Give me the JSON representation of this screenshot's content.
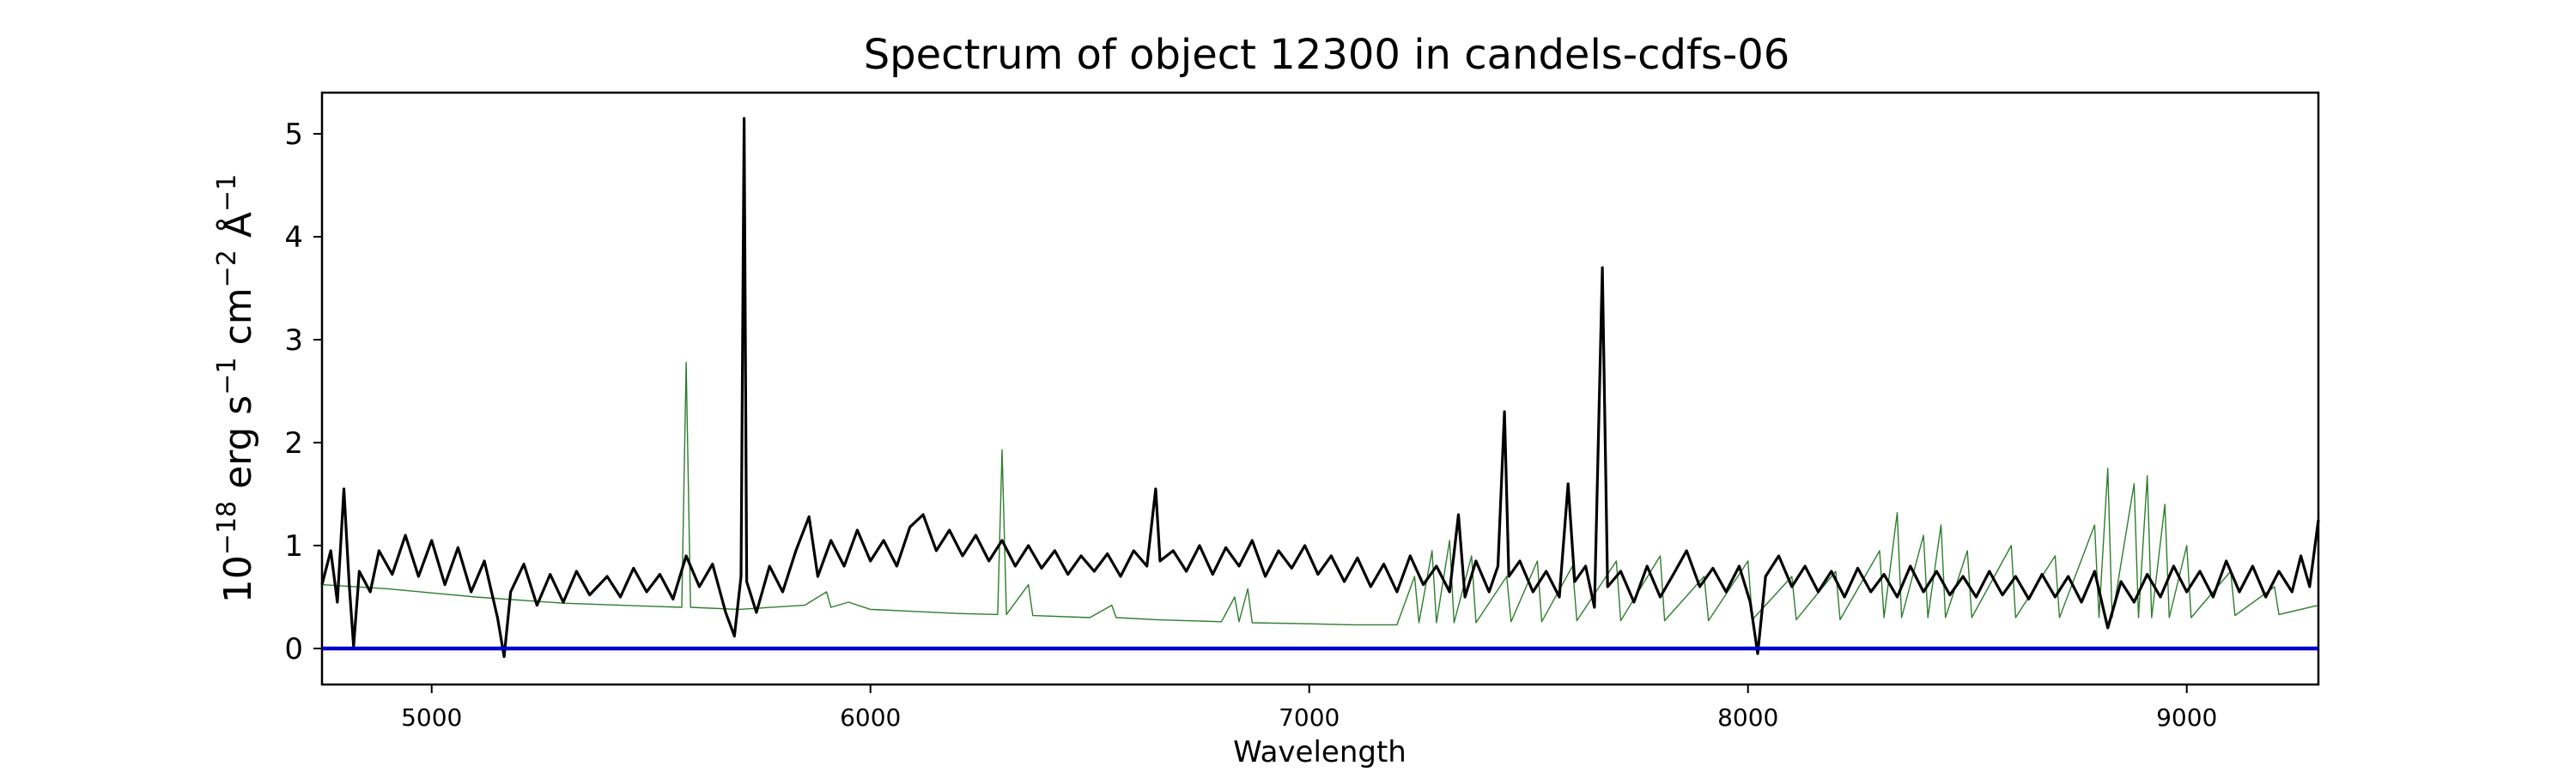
{
  "chart_data": {
    "type": "line",
    "title": "Spectrum of object 12300 in candels-cdfs-06",
    "xlabel": "Wavelength",
    "ylabel": {
      "base": "10",
      "exp_base": "−18",
      "text1": " erg s",
      "exp_s": "−1",
      "text2": " cm",
      "exp_cm": "−2",
      "text3": " Å",
      "exp_a": "−1"
    },
    "xlim": [
      4750,
      9300
    ],
    "ylim": [
      -0.35,
      5.4
    ],
    "xticks": [
      5000,
      6000,
      7000,
      8000,
      9000
    ],
    "xtick_labels": [
      "5000",
      "6000",
      "7000",
      "8000",
      "9000"
    ],
    "yticks": [
      0,
      1,
      2,
      3,
      4,
      5
    ],
    "ytick_labels": [
      "0",
      "1",
      "2",
      "3",
      "4",
      "5"
    ],
    "grid": false,
    "series": [
      {
        "role": "flux",
        "color": "#000000",
        "points": [
          [
            4750,
            0.62
          ],
          [
            4770,
            0.95
          ],
          [
            4785,
            0.45
          ],
          [
            4800,
            1.55
          ],
          [
            4812,
            0.62
          ],
          [
            4822,
            0.02
          ],
          [
            4835,
            0.75
          ],
          [
            4860,
            0.55
          ],
          [
            4880,
            0.95
          ],
          [
            4910,
            0.72
          ],
          [
            4940,
            1.1
          ],
          [
            4970,
            0.7
          ],
          [
            5000,
            1.05
          ],
          [
            5030,
            0.62
          ],
          [
            5060,
            0.98
          ],
          [
            5090,
            0.55
          ],
          [
            5120,
            0.85
          ],
          [
            5150,
            0.3
          ],
          [
            5165,
            -0.08
          ],
          [
            5180,
            0.55
          ],
          [
            5210,
            0.82
          ],
          [
            5240,
            0.42
          ],
          [
            5270,
            0.72
          ],
          [
            5300,
            0.45
          ],
          [
            5330,
            0.75
          ],
          [
            5360,
            0.52
          ],
          [
            5400,
            0.7
          ],
          [
            5430,
            0.5
          ],
          [
            5460,
            0.78
          ],
          [
            5490,
            0.55
          ],
          [
            5520,
            0.72
          ],
          [
            5550,
            0.48
          ],
          [
            5580,
            0.9
          ],
          [
            5610,
            0.6
          ],
          [
            5640,
            0.82
          ],
          [
            5670,
            0.35
          ],
          [
            5690,
            0.12
          ],
          [
            5705,
            0.7
          ],
          [
            5712,
            5.15
          ],
          [
            5718,
            0.65
          ],
          [
            5740,
            0.35
          ],
          [
            5770,
            0.8
          ],
          [
            5800,
            0.55
          ],
          [
            5830,
            0.95
          ],
          [
            5860,
            1.28
          ],
          [
            5880,
            0.7
          ],
          [
            5910,
            1.05
          ],
          [
            5940,
            0.8
          ],
          [
            5970,
            1.15
          ],
          [
            6000,
            0.85
          ],
          [
            6030,
            1.05
          ],
          [
            6060,
            0.8
          ],
          [
            6090,
            1.18
          ],
          [
            6120,
            1.3
          ],
          [
            6150,
            0.95
          ],
          [
            6180,
            1.15
          ],
          [
            6210,
            0.9
          ],
          [
            6240,
            1.1
          ],
          [
            6270,
            0.85
          ],
          [
            6300,
            1.05
          ],
          [
            6330,
            0.8
          ],
          [
            6360,
            1.0
          ],
          [
            6390,
            0.78
          ],
          [
            6420,
            0.95
          ],
          [
            6450,
            0.72
          ],
          [
            6480,
            0.9
          ],
          [
            6510,
            0.75
          ],
          [
            6540,
            0.92
          ],
          [
            6570,
            0.7
          ],
          [
            6600,
            0.95
          ],
          [
            6630,
            0.8
          ],
          [
            6650,
            1.55
          ],
          [
            6660,
            0.85
          ],
          [
            6690,
            0.95
          ],
          [
            6720,
            0.75
          ],
          [
            6750,
            1.0
          ],
          [
            6780,
            0.72
          ],
          [
            6810,
            0.98
          ],
          [
            6840,
            0.8
          ],
          [
            6870,
            1.05
          ],
          [
            6900,
            0.7
          ],
          [
            6930,
            0.95
          ],
          [
            6960,
            0.78
          ],
          [
            6990,
            1.0
          ],
          [
            7020,
            0.72
          ],
          [
            7050,
            0.9
          ],
          [
            7080,
            0.65
          ],
          [
            7110,
            0.88
          ],
          [
            7140,
            0.6
          ],
          [
            7170,
            0.82
          ],
          [
            7200,
            0.55
          ],
          [
            7230,
            0.9
          ],
          [
            7260,
            0.62
          ],
          [
            7290,
            0.8
          ],
          [
            7320,
            0.55
          ],
          [
            7340,
            1.3
          ],
          [
            7355,
            0.5
          ],
          [
            7380,
            0.85
          ],
          [
            7410,
            0.55
          ],
          [
            7430,
            0.8
          ],
          [
            7445,
            2.3
          ],
          [
            7455,
            0.7
          ],
          [
            7480,
            0.85
          ],
          [
            7510,
            0.55
          ],
          [
            7540,
            0.75
          ],
          [
            7570,
            0.5
          ],
          [
            7590,
            1.6
          ],
          [
            7605,
            0.65
          ],
          [
            7630,
            0.8
          ],
          [
            7650,
            0.4
          ],
          [
            7668,
            3.7
          ],
          [
            7680,
            0.6
          ],
          [
            7710,
            0.75
          ],
          [
            7740,
            0.45
          ],
          [
            7770,
            0.8
          ],
          [
            7800,
            0.5
          ],
          [
            7830,
            0.72
          ],
          [
            7860,
            0.95
          ],
          [
            7890,
            0.6
          ],
          [
            7920,
            0.78
          ],
          [
            7950,
            0.55
          ],
          [
            7980,
            0.8
          ],
          [
            8005,
            0.45
          ],
          [
            8022,
            -0.05
          ],
          [
            8040,
            0.7
          ],
          [
            8070,
            0.9
          ],
          [
            8100,
            0.6
          ],
          [
            8130,
            0.8
          ],
          [
            8160,
            0.55
          ],
          [
            8190,
            0.75
          ],
          [
            8220,
            0.5
          ],
          [
            8250,
            0.78
          ],
          [
            8280,
            0.55
          ],
          [
            8310,
            0.72
          ],
          [
            8340,
            0.5
          ],
          [
            8370,
            0.8
          ],
          [
            8400,
            0.55
          ],
          [
            8430,
            0.75
          ],
          [
            8460,
            0.52
          ],
          [
            8490,
            0.7
          ],
          [
            8520,
            0.5
          ],
          [
            8550,
            0.75
          ],
          [
            8580,
            0.52
          ],
          [
            8610,
            0.7
          ],
          [
            8640,
            0.48
          ],
          [
            8670,
            0.72
          ],
          [
            8700,
            0.5
          ],
          [
            8730,
            0.7
          ],
          [
            8760,
            0.45
          ],
          [
            8790,
            0.75
          ],
          [
            8820,
            0.2
          ],
          [
            8850,
            0.65
          ],
          [
            8880,
            0.45
          ],
          [
            8910,
            0.72
          ],
          [
            8940,
            0.5
          ],
          [
            8970,
            0.8
          ],
          [
            9000,
            0.55
          ],
          [
            9030,
            0.75
          ],
          [
            9060,
            0.5
          ],
          [
            9090,
            0.85
          ],
          [
            9120,
            0.55
          ],
          [
            9150,
            0.8
          ],
          [
            9180,
            0.5
          ],
          [
            9210,
            0.75
          ],
          [
            9240,
            0.55
          ],
          [
            9260,
            0.9
          ],
          [
            9280,
            0.6
          ],
          [
            9300,
            1.25
          ]
        ]
      },
      {
        "role": "model",
        "color": "#2e7d2e",
        "points": [
          [
            4750,
            0.62
          ],
          [
            4900,
            0.58
          ],
          [
            5100,
            0.5
          ],
          [
            5300,
            0.44
          ],
          [
            5500,
            0.41
          ],
          [
            5570,
            0.4
          ],
          [
            5580,
            2.78
          ],
          [
            5590,
            0.4
          ],
          [
            5700,
            0.38
          ],
          [
            5850,
            0.42
          ],
          [
            5900,
            0.55
          ],
          [
            5910,
            0.4
          ],
          [
            5950,
            0.45
          ],
          [
            6000,
            0.38
          ],
          [
            6100,
            0.36
          ],
          [
            6200,
            0.34
          ],
          [
            6290,
            0.33
          ],
          [
            6300,
            1.93
          ],
          [
            6310,
            0.33
          ],
          [
            6360,
            0.62
          ],
          [
            6370,
            0.32
          ],
          [
            6500,
            0.3
          ],
          [
            6550,
            0.42
          ],
          [
            6560,
            0.3
          ],
          [
            6650,
            0.28
          ],
          [
            6800,
            0.26
          ],
          [
            6830,
            0.5
          ],
          [
            6840,
            0.26
          ],
          [
            6860,
            0.58
          ],
          [
            6870,
            0.25
          ],
          [
            7000,
            0.24
          ],
          [
            7100,
            0.23
          ],
          [
            7200,
            0.23
          ],
          [
            7240,
            0.7
          ],
          [
            7250,
            0.25
          ],
          [
            7280,
            0.95
          ],
          [
            7290,
            0.25
          ],
          [
            7320,
            1.05
          ],
          [
            7330,
            0.25
          ],
          [
            7370,
            0.9
          ],
          [
            7380,
            0.25
          ],
          [
            7450,
            0.7
          ],
          [
            7460,
            0.26
          ],
          [
            7520,
            0.85
          ],
          [
            7530,
            0.26
          ],
          [
            7600,
            0.8
          ],
          [
            7610,
            0.27
          ],
          [
            7700,
            0.85
          ],
          [
            7710,
            0.27
          ],
          [
            7800,
            0.9
          ],
          [
            7810,
            0.27
          ],
          [
            7900,
            0.7
          ],
          [
            7910,
            0.27
          ],
          [
            8000,
            0.85
          ],
          [
            8010,
            0.28
          ],
          [
            8100,
            0.7
          ],
          [
            8110,
            0.28
          ],
          [
            8200,
            0.75
          ],
          [
            8210,
            0.28
          ],
          [
            8300,
            0.95
          ],
          [
            8310,
            0.3
          ],
          [
            8340,
            1.32
          ],
          [
            8350,
            0.3
          ],
          [
            8400,
            1.1
          ],
          [
            8410,
            0.3
          ],
          [
            8440,
            1.2
          ],
          [
            8450,
            0.3
          ],
          [
            8500,
            0.95
          ],
          [
            8510,
            0.3
          ],
          [
            8600,
            1.0
          ],
          [
            8610,
            0.3
          ],
          [
            8700,
            0.9
          ],
          [
            8710,
            0.3
          ],
          [
            8790,
            1.2
          ],
          [
            8800,
            0.3
          ],
          [
            8820,
            1.75
          ],
          [
            8830,
            0.3
          ],
          [
            8880,
            1.6
          ],
          [
            8890,
            0.3
          ],
          [
            8910,
            1.68
          ],
          [
            8920,
            0.3
          ],
          [
            8950,
            1.4
          ],
          [
            8960,
            0.3
          ],
          [
            9000,
            1.0
          ],
          [
            9010,
            0.3
          ],
          [
            9100,
            0.75
          ],
          [
            9110,
            0.32
          ],
          [
            9200,
            0.6
          ],
          [
            9210,
            0.33
          ],
          [
            9300,
            0.42
          ]
        ]
      },
      {
        "role": "zero",
        "color": "#0000cc",
        "points": [
          [
            4750,
            0
          ],
          [
            9300,
            0
          ]
        ]
      }
    ]
  }
}
